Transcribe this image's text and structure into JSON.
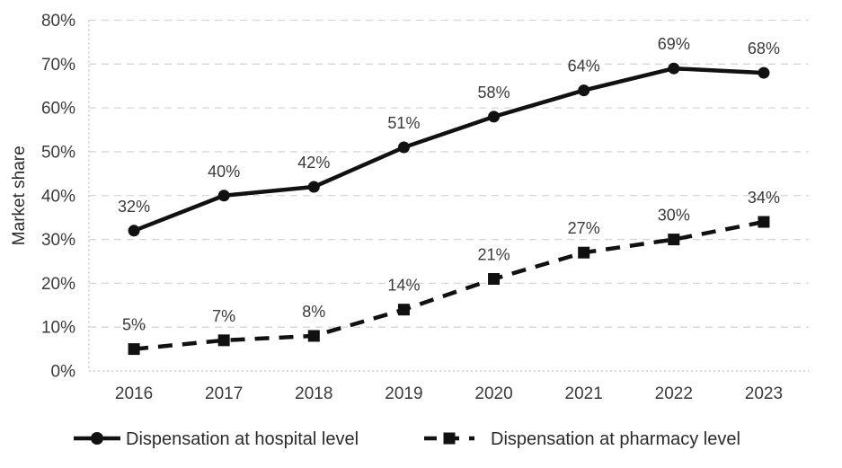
{
  "chart_data": {
    "type": "line",
    "title": "",
    "xlabel": "",
    "ylabel": "Market share",
    "categories": [
      "2016",
      "2017",
      "2018",
      "2019",
      "2020",
      "2021",
      "2022",
      "2023"
    ],
    "series": [
      {
        "name": "Dispensation at hospital level",
        "values": [
          32,
          40,
          42,
          51,
          58,
          64,
          69,
          68
        ],
        "data_labels": [
          "32%",
          "40%",
          "42%",
          "51%",
          "58%",
          "64%",
          "69%",
          "68%"
        ],
        "line_style": "solid",
        "marker": "circle",
        "color": "#111111"
      },
      {
        "name": "Dispensation at pharmacy level",
        "values": [
          5,
          7,
          8,
          14,
          21,
          27,
          30,
          34
        ],
        "data_labels": [
          "5%",
          "7%",
          "8%",
          "14%",
          "21%",
          "27%",
          "30%",
          "34%"
        ],
        "line_style": "dashed",
        "marker": "square",
        "color": "#111111"
      }
    ],
    "ylim": [
      0,
      80
    ],
    "ytick_step": 10,
    "ytick_labels": [
      "0%",
      "10%",
      "20%",
      "30%",
      "40%",
      "50%",
      "60%",
      "70%",
      "80%"
    ],
    "grid": true,
    "gridline_style": "dashed",
    "legend_position": "bottom"
  },
  "colors": {
    "series_line": "#111111",
    "text": "#3a3a3a",
    "gridline": "#d6d6d6",
    "axis": "#c4c4c4",
    "background": "#ffffff"
  }
}
